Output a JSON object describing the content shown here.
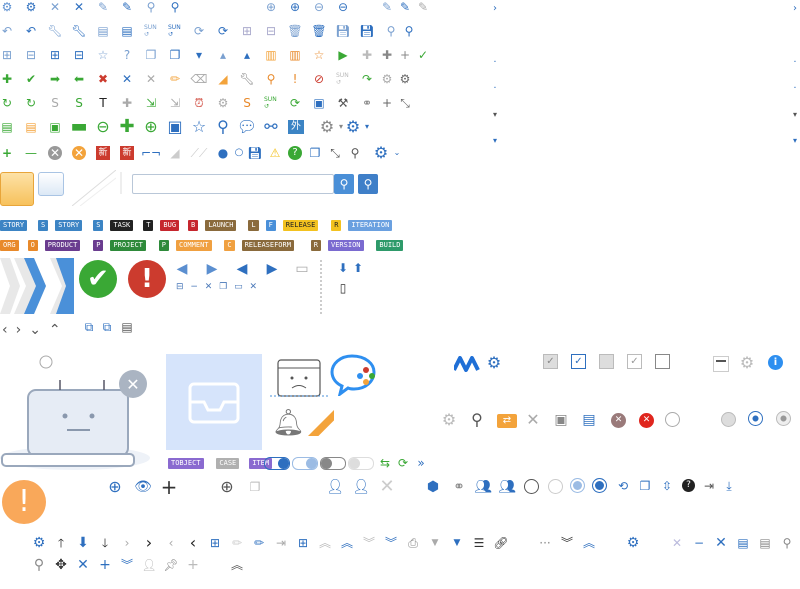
{
  "colors": {
    "primary": "#2e7bd6",
    "green": "#3aa835",
    "red": "#cc3b2e",
    "orange": "#f3a33b",
    "gray": "#9a9a9a",
    "light_blue": "#4a90d9"
  },
  "tags_row1": [
    {
      "label": "STORY",
      "color": "#3c84c4"
    },
    {
      "label": "S",
      "color": "#3c84c4"
    },
    {
      "label": "STORY",
      "color": "#3c84c4"
    },
    {
      "label": "S",
      "color": "#3c84c4"
    },
    {
      "label": "TASK",
      "color": "#222222"
    },
    {
      "label": "T",
      "color": "#222222"
    },
    {
      "label": "BUG",
      "color": "#c6262e"
    },
    {
      "label": "B",
      "color": "#c6262e"
    },
    {
      "label": "LAUNCH",
      "color": "#8a6a3c"
    },
    {
      "label": "L",
      "color": "#8a6a3c"
    },
    {
      "label": "F",
      "color": "#4a90d9"
    },
    {
      "label": "RELEASE",
      "color": "#f3c21f",
      "dark": true
    },
    {
      "label": "R",
      "color": "#f3c21f",
      "dark": true
    },
    {
      "label": "ITERATION",
      "color": "#6aa0e0"
    }
  ],
  "tags_row2": [
    {
      "label": "ORG",
      "color": "#e8892a"
    },
    {
      "label": "O",
      "color": "#e8892a"
    },
    {
      "label": "PRODUCT",
      "color": "#6a3c8f"
    },
    {
      "label": "P",
      "color": "#6a3c8f"
    },
    {
      "label": "PROJECT",
      "color": "#2e8a3a"
    },
    {
      "label": "P",
      "color": "#2e8a3a"
    },
    {
      "label": "COMMENT",
      "color": "#f0a040"
    },
    {
      "label": "C",
      "color": "#f0a040"
    },
    {
      "label": "RELEASEFORM",
      "color": "#8a6a3c"
    },
    {
      "label": "R",
      "color": "#8a6a3c"
    },
    {
      "label": "VERSION",
      "color": "#7a6ad0"
    },
    {
      "label": "BUILD",
      "color": "#2e9a6a"
    }
  ],
  "tags_row3": [
    {
      "label": "TOBJECT",
      "color": "#8a6ad0"
    },
    {
      "label": "CASE",
      "color": "#b0b0b0"
    },
    {
      "label": "ITEM",
      "color": "#8a6ad0"
    }
  ],
  "badges": {
    "new_cn": "新",
    "waiwang": "外网",
    "new_corner": "new"
  },
  "search": {
    "placeholder": ""
  },
  "sun_label": "SUN",
  "letter_badges": [
    "S",
    "S",
    "T",
    "S",
    "S",
    "S"
  ]
}
